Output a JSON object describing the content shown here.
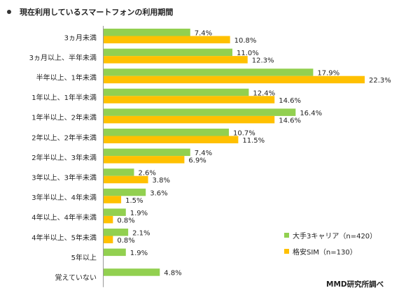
{
  "title": "現在利用しているスマートフォンの利用期間",
  "source": "MMD研究所調べ",
  "colors": {
    "series1": "#92D050",
    "series2": "#FFC000",
    "axis": "#9a9a9a"
  },
  "chart_data": {
    "type": "bar",
    "orientation": "horizontal",
    "title": "現在利用しているスマートフォンの利用期間",
    "categories": [
      "3ヵ月未満",
      "3ヵ月以上、半年未満",
      "半年以上、1年未満",
      "1年以上、1年半未満",
      "1年半以上、2年未満",
      "2年以上、2年半未満",
      "2年半以上、3年未満",
      "3年以上、3年半未満",
      "3年半以上、4年未満",
      "4年以上、4年半未満",
      "4年半以上、5年未満",
      "5年以上",
      "覚えていない"
    ],
    "series": [
      {
        "name": "大手3キャリア（n=420）",
        "values": [
          7.4,
          11.0,
          17.9,
          12.4,
          16.4,
          10.7,
          7.4,
          2.6,
          3.6,
          1.9,
          2.1,
          1.9,
          4.8
        ],
        "labels": [
          "7.4%",
          "11.0%",
          "17.9%",
          "12.4%",
          "16.4%",
          "10.7%",
          "7.4%",
          "2.6%",
          "3.6%",
          "1.9%",
          "2.1%",
          "1.9%",
          "4.8%"
        ]
      },
      {
        "name": "格安SIM（n=130）",
        "values": [
          10.8,
          12.3,
          22.3,
          14.6,
          14.6,
          11.5,
          6.9,
          3.8,
          1.5,
          0.8,
          0.8,
          null,
          null
        ],
        "labels": [
          "10.8%",
          "12.3%",
          "22.3%",
          "14.6%",
          "14.6%",
          "11.5%",
          "6.9%",
          "3.8%",
          "1.5%",
          "0.8%",
          "0.8%",
          null,
          null
        ]
      }
    ],
    "xlim": [
      0,
      22.3
    ],
    "grid": false,
    "legend": "bottom-right"
  }
}
